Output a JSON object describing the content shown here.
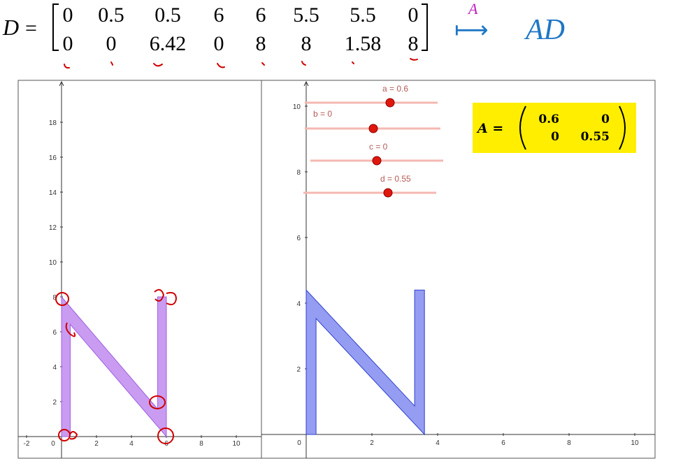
{
  "equation": {
    "lhs": "D",
    "equals": "=",
    "matrix_D": {
      "row1": [
        "0",
        "0.5",
        "0.5",
        "6",
        "6",
        "5.5",
        "5.5",
        "0"
      ],
      "row2": [
        "0",
        "0",
        "6.42",
        "0",
        "8",
        "8",
        "1.58",
        "8"
      ]
    },
    "map_label": "A",
    "map_arrow": "⟼",
    "result": "AD"
  },
  "left_panel": {
    "x_ticks": [
      "-2",
      "0",
      "2",
      "4",
      "6",
      "8",
      "10"
    ],
    "y_ticks": [
      "2",
      "4",
      "6",
      "8",
      "10",
      "12",
      "14",
      "16",
      "18"
    ],
    "shape_color": "#c08bf0"
  },
  "right_panel": {
    "x_ticks": [
      "0",
      "2",
      "4",
      "6",
      "8",
      "10"
    ],
    "y_ticks": [
      "2",
      "4",
      "6",
      "8",
      "10"
    ],
    "shape_color": "#8892f0",
    "sliders": [
      {
        "label": "a = 0.6",
        "value": 0.6
      },
      {
        "label": "b = 0",
        "value": 0
      },
      {
        "label": "c = 0",
        "value": 0
      },
      {
        "label": "d = 0.55",
        "value": 0.55
      }
    ],
    "matrix_A": {
      "label": "A =",
      "row1": [
        "0.6",
        "0"
      ],
      "row2": [
        "0",
        "0.55"
      ],
      "bg_color": "#ffee00"
    }
  },
  "colors": {
    "slider_track": "#f4b8b2",
    "slider_knob": "#e0170d",
    "annotation": "#d00000",
    "equation_accent": "#1f77c4",
    "map_label_color": "#c020c0"
  }
}
